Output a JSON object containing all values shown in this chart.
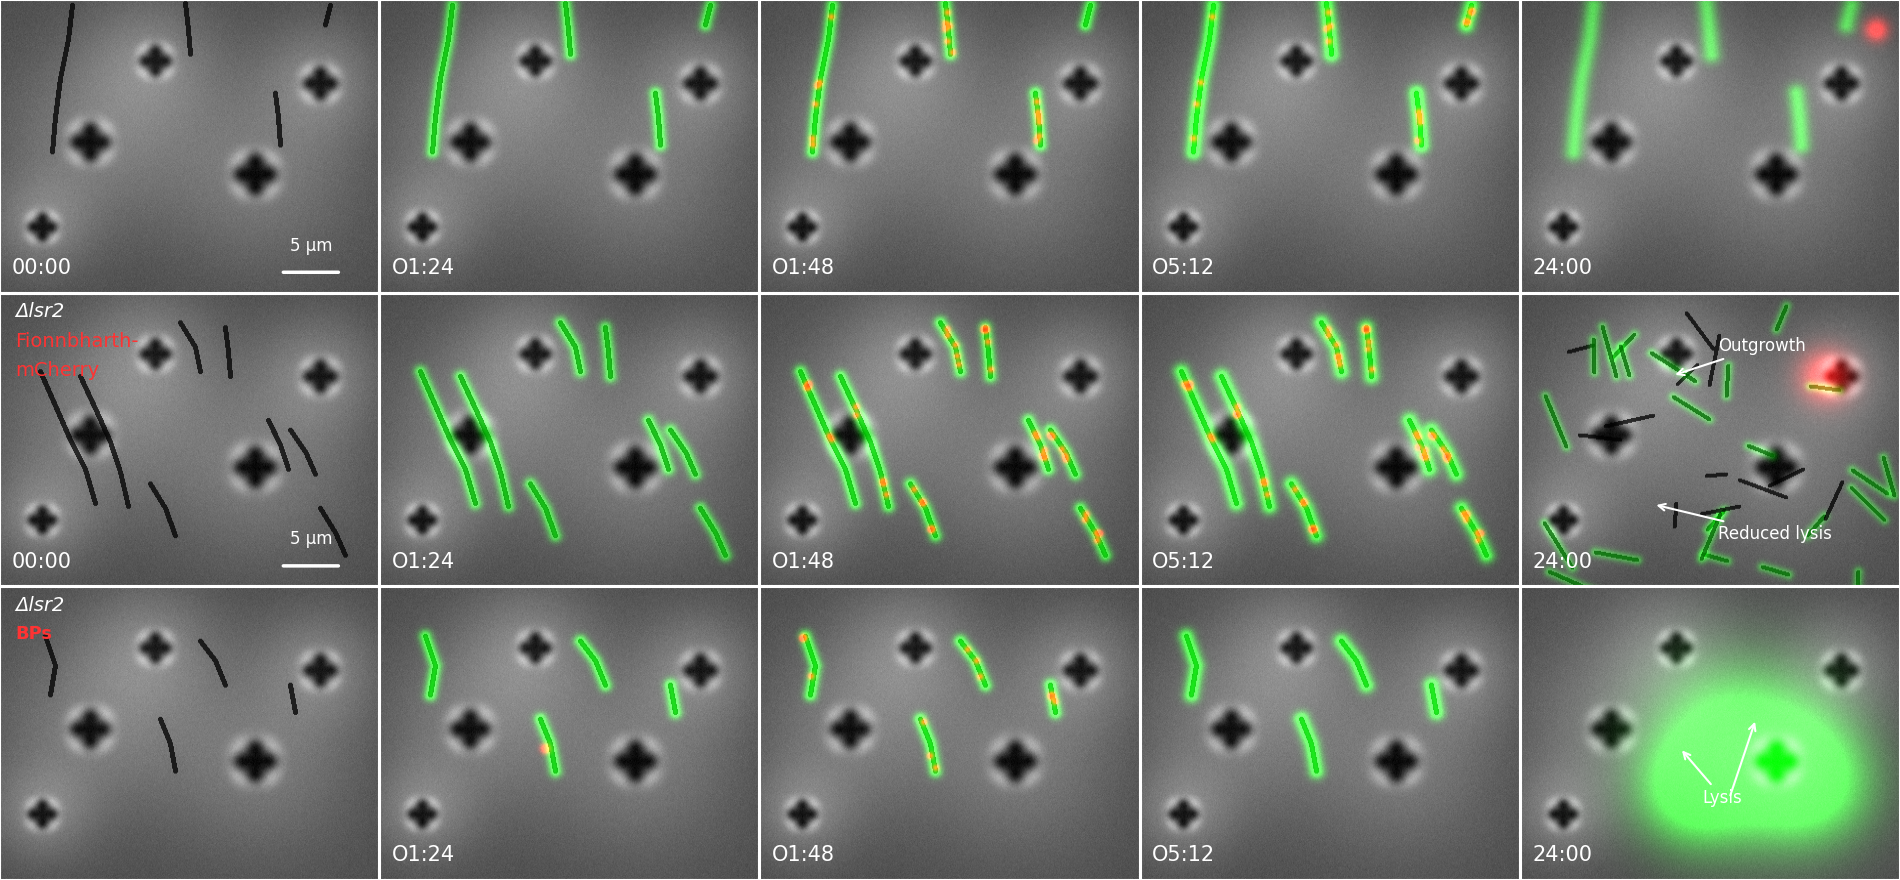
{
  "figsize": [
    19.0,
    8.8
  ],
  "dpi": 100,
  "nrows": 3,
  "ncols": 5,
  "background_color": "#1a1a1a",
  "time_labels": [
    [
      "00:00",
      "O1:24",
      "O1:48",
      "O5:12",
      "24:00"
    ],
    [
      "00:00",
      "O1:24",
      "O1:48",
      "O5:12",
      "24:00"
    ],
    [
      "",
      "O1:24",
      "O1:48",
      "O5:12",
      "24:00"
    ]
  ],
  "row1_label_line1": "Δlsr2",
  "row1_label_line2": "Fionnbharth-",
  "row1_label_line3": "mCherry",
  "row2_label_line1": "Δlsr2",
  "row2_label_line2": "BPs",
  "scale_bar_text": "5 μm",
  "label_fontsize": 14,
  "time_fontsize": 15,
  "annotation_fontsize": 12,
  "scale_fontsize": 12
}
